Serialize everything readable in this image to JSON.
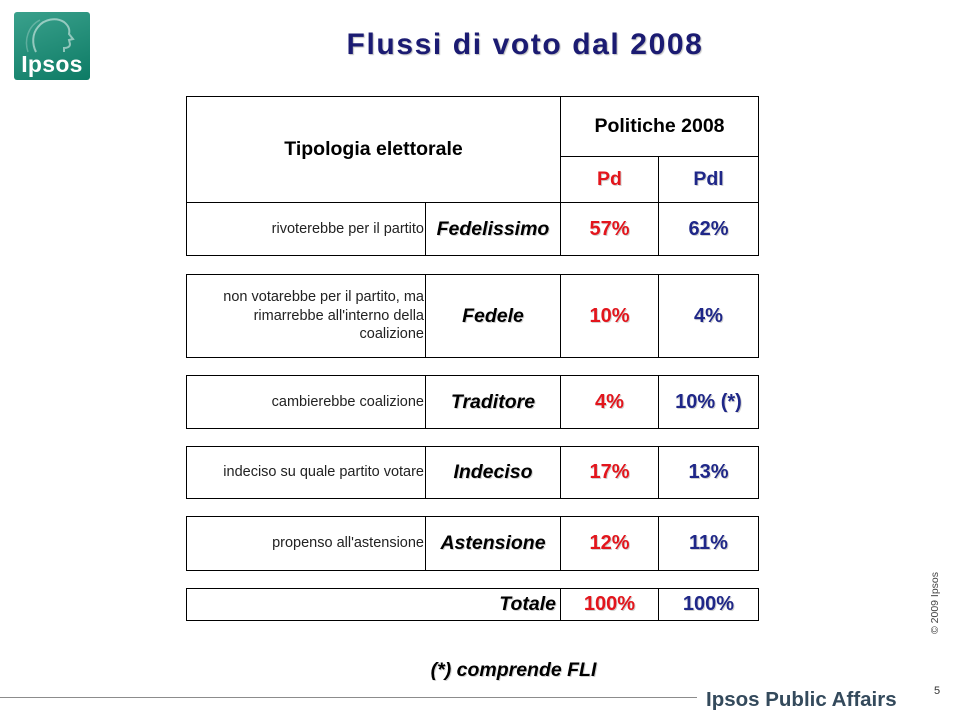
{
  "logo": {
    "text": "Ipsos",
    "color": "#0f8c73"
  },
  "colors": {
    "title": "#1b1b72",
    "pd": "#e3151c",
    "pdl": "#1f2788",
    "brand": "#344a5c"
  },
  "chart_data": {
    "type": "table",
    "title": "Flussi di voto dal 2008",
    "row_header": "Tipologia elettorale",
    "column_group": "Politiche 2008",
    "columns": [
      "Pd",
      "Pdl"
    ],
    "rows": [
      {
        "description": "rivoterebbe per il partito",
        "category": "Fedelissimo",
        "values": [
          "57%",
          "62%"
        ]
      },
      {
        "description": "non votarebbe per il partito, ma\nrimarrebbe all'interno della\ncoalizione",
        "category": "Fedele",
        "values": [
          "10%",
          "4%"
        ]
      },
      {
        "description": "cambierebbe coalizione",
        "category": "Traditore",
        "values": [
          "4%",
          "10% (*)"
        ]
      },
      {
        "description": "indeciso su quale partito votare",
        "category": "Indeciso",
        "values": [
          "17%",
          "13%"
        ]
      },
      {
        "description": "propenso all'astensione",
        "category": "Astensione",
        "values": [
          "12%",
          "11%"
        ]
      }
    ],
    "total": {
      "category": "Totale",
      "values": [
        "100%",
        "100%"
      ]
    },
    "note": "(*) comprende FLI"
  },
  "footer": {
    "copyright": "© 2009 Ipsos",
    "page_number": "5",
    "brand": "Ipsos Public Affairs"
  }
}
